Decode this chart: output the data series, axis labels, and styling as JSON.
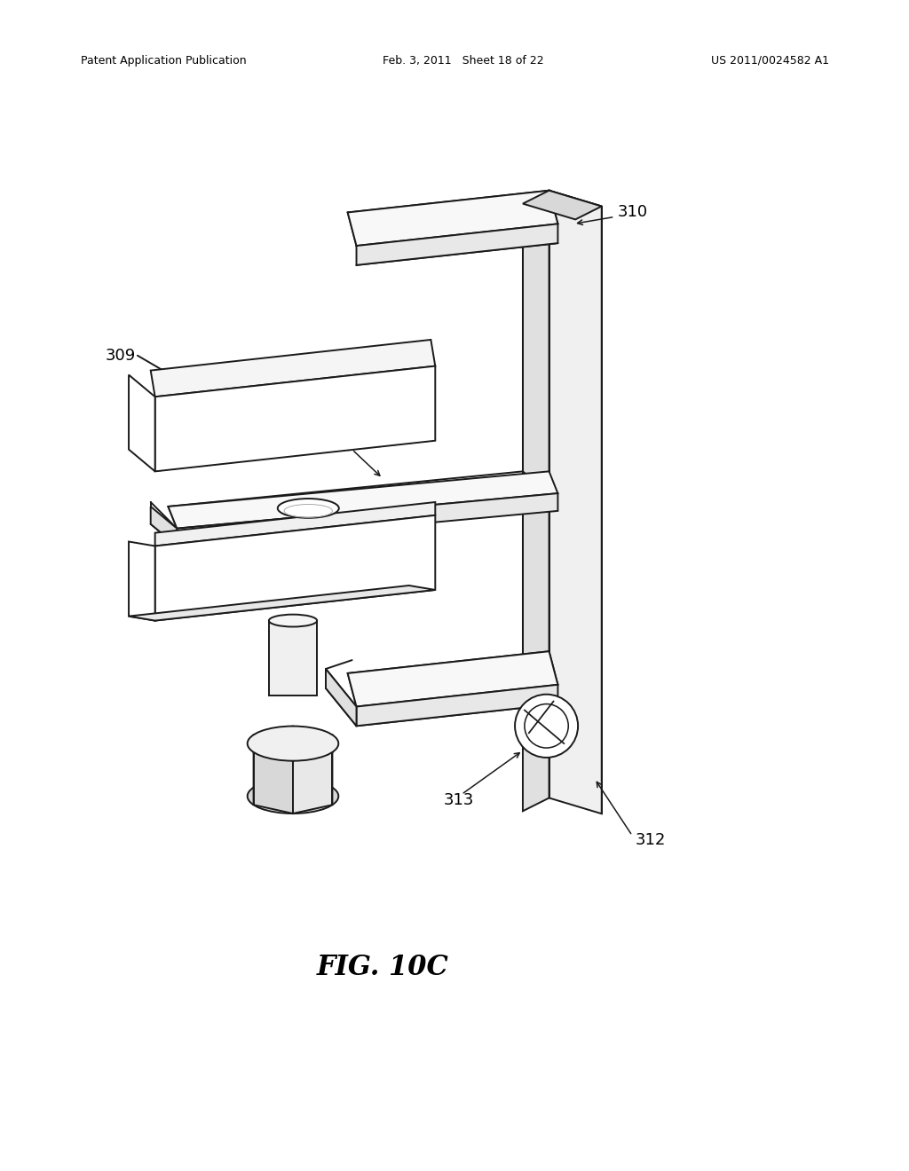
{
  "background_color": "#ffffff",
  "header_left": "Patent Application Publication",
  "header_center": "Feb. 3, 2011   Sheet 18 of 22",
  "header_right": "US 2011/0024582 A1",
  "figure_label": "FIG. 10C",
  "line_color": "#1a1a1a",
  "line_width": 1.4,
  "fill_white": "#ffffff",
  "fill_light": "#f5f5f5"
}
